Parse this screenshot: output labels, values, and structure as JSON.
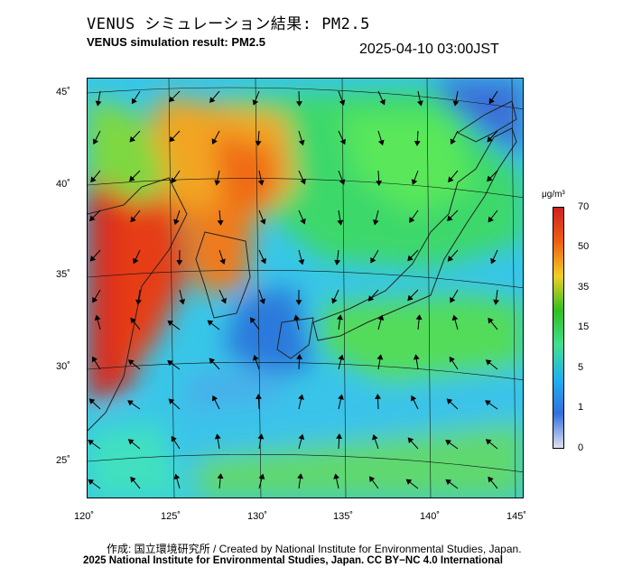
{
  "title_jp": "VENUS シミュレーション結果: PM2.5",
  "title_en": "VENUS simulation result: PM2.5",
  "timestamp": "2025-04-10 03:00JST",
  "lat_labels": [
    "45˚",
    "40˚",
    "35˚",
    "30˚",
    "25˚"
  ],
  "lon_labels": [
    "120˚",
    "125˚",
    "130˚",
    "135˚",
    "140˚",
    "145˚"
  ],
  "colorbar": {
    "unit": "μg/m³",
    "ticks": [
      "70",
      "50",
      "35",
      "15",
      "5",
      "1",
      "0"
    ],
    "colors": [
      "#e0e0f0",
      "#3070e0",
      "#20b0f0",
      "#40e090",
      "#30c020",
      "#f0d020",
      "#f06010",
      "#d02020"
    ]
  },
  "credit_line1": "作成: 国立環境研究所 / Created by National Institute for Environmental Studies, Japan.",
  "credit_line2": "2025 National Institute for Environmental Studies, Japan. CC BY−NC 4.0 International"
}
